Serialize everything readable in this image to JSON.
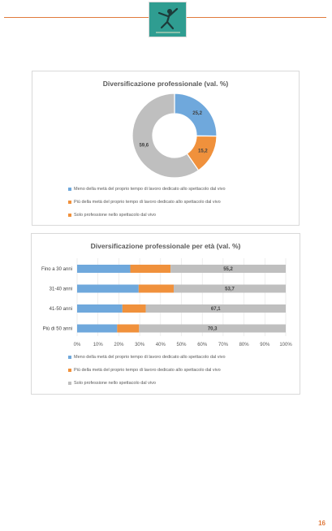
{
  "page": {
    "number": "16"
  },
  "colors": {
    "accent": "#e07a3c",
    "blue": "#6fa8dc",
    "orange": "#f0913c",
    "gray": "#bfbfbf"
  },
  "logo": {
    "icon": "dancer-figure-icon"
  },
  "chart_data": [
    {
      "type": "pie",
      "donut": true,
      "title": "Diversificazione professionale (val. %)",
      "categories": [
        "Meno della metà del proprio tempo di lavoro dedicato allo spettacolo dal vivo",
        "Più della metà del proprio tempo di lavoro dedicato allo spettacolo dal vivo",
        "Solo professione nello spettacolo dal vivo"
      ],
      "values": [
        25.2,
        15.2,
        59.6
      ],
      "labels": [
        "25,2",
        "15,2",
        "59,6"
      ],
      "colors": [
        "#6fa8dc",
        "#f0913c",
        "#bfbfbf"
      ],
      "legend_position": "bottom"
    },
    {
      "type": "bar",
      "orientation": "horizontal",
      "stacked": "percent",
      "title": "Diversificazione professionale per età (val. %)",
      "categories": [
        "Fino a 30 anni",
        "31-40 anni",
        "41-50 anni",
        "Più di 50 anni"
      ],
      "series": [
        {
          "name": "Meno della metà del proprio tempo di lavoro dedicato allo spettacolo dal vivo",
          "values": [
            25.5,
            29.5,
            21.7,
            19.2
          ],
          "color": "#6fa8dc"
        },
        {
          "name": "Più della metà del proprio tempo di lavoro dedicato allo spettacolo dal vivo",
          "values": [
            19.3,
            16.8,
            11.2,
            10.5
          ],
          "color": "#f0913c"
        },
        {
          "name": "Solo professione nello spettacolo dal vivo",
          "values": [
            55.2,
            53.7,
            67.1,
            70.3
          ],
          "labels": [
            "55,2",
            "53,7",
            "67,1",
            "70,3"
          ],
          "color": "#bfbfbf"
        }
      ],
      "xticks": [
        "0%",
        "10%",
        "20%",
        "30%",
        "40%",
        "50%",
        "60%",
        "70%",
        "80%",
        "90%",
        "100%"
      ],
      "xlim": [
        0,
        100
      ],
      "grid": true,
      "legend_position": "bottom"
    }
  ]
}
